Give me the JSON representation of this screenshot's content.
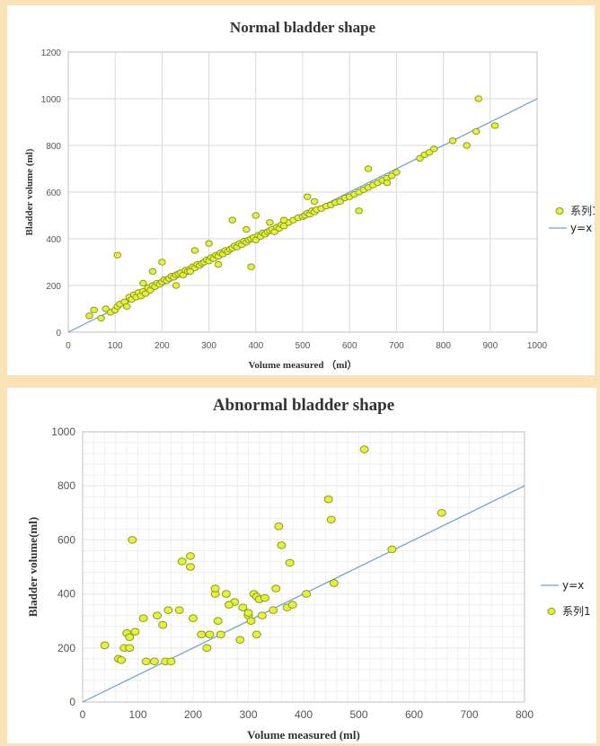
{
  "chart_data": [
    {
      "type": "scatter",
      "title": "Normal bladder shape",
      "xlabel": "Volume measured （ml）",
      "ylabel": "Bladder volume (ml)",
      "xlim": [
        0,
        1000
      ],
      "ylim": [
        0,
        1200
      ],
      "xticks": [
        "0",
        "100",
        "200",
        "300",
        "400",
        "500",
        "600",
        "700",
        "800",
        "900",
        "1000"
      ],
      "yticks": [
        "0",
        "200",
        "400",
        "600",
        "800",
        "1000",
        "1200"
      ],
      "grid": true,
      "legend_position": "right",
      "series": [
        {
          "name": "系列1",
          "kind": "points",
          "color": "#e6f23a",
          "x": [
            45,
            55,
            70,
            80,
            90,
            100,
            105,
            110,
            120,
            125,
            130,
            135,
            140,
            145,
            150,
            155,
            160,
            165,
            170,
            175,
            180,
            185,
            190,
            195,
            200,
            205,
            210,
            215,
            220,
            225,
            230,
            235,
            240,
            245,
            250,
            255,
            260,
            265,
            270,
            275,
            280,
            285,
            290,
            295,
            300,
            305,
            310,
            315,
            320,
            325,
            330,
            335,
            340,
            345,
            350,
            355,
            360,
            365,
            370,
            375,
            380,
            385,
            390,
            395,
            400,
            405,
            410,
            415,
            420,
            425,
            430,
            435,
            440,
            445,
            450,
            455,
            460,
            470,
            480,
            490,
            500,
            505,
            510,
            515,
            520,
            525,
            530,
            540,
            550,
            560,
            570,
            580,
            590,
            600,
            610,
            620,
            630,
            640,
            650,
            660,
            670,
            680,
            690,
            700,
            750,
            760,
            770,
            780,
            820,
            850,
            870,
            910,
            875,
            105,
            160,
            200,
            230,
            260,
            300,
            320,
            350,
            380,
            400,
            430,
            460,
            510,
            525,
            620,
            640,
            680,
            180,
            270,
            390
          ],
          "y": [
            70,
            95,
            60,
            100,
            85,
            95,
            110,
            120,
            130,
            110,
            150,
            140,
            160,
            150,
            170,
            155,
            175,
            165,
            190,
            180,
            200,
            195,
            210,
            205,
            215,
            225,
            220,
            230,
            240,
            235,
            245,
            250,
            255,
            245,
            265,
            260,
            270,
            280,
            275,
            290,
            285,
            295,
            300,
            310,
            305,
            320,
            315,
            330,
            325,
            340,
            335,
            350,
            345,
            355,
            360,
            370,
            365,
            380,
            375,
            390,
            385,
            395,
            400,
            405,
            395,
            415,
            410,
            425,
            420,
            430,
            435,
            440,
            430,
            450,
            445,
            460,
            455,
            470,
            480,
            490,
            495,
            500,
            510,
            505,
            520,
            515,
            525,
            530,
            540,
            545,
            555,
            560,
            575,
            580,
            590,
            600,
            610,
            620,
            630,
            640,
            650,
            660,
            670,
            685,
            745,
            760,
            770,
            785,
            820,
            800,
            860,
            885,
            1000,
            330,
            210,
            300,
            200,
            260,
            380,
            290,
            480,
            440,
            500,
            470,
            480,
            580,
            560,
            520,
            700,
            640,
            260,
            350,
            280
          ]
        },
        {
          "name": "y=x",
          "kind": "line",
          "color": "#6a9fd4",
          "x": [
            0,
            1000
          ],
          "y": [
            0,
            1000
          ]
        }
      ]
    },
    {
      "type": "scatter",
      "title": "Abnormal bladder shape",
      "xlabel": "Volume measured (ml)",
      "ylabel": "Bladder volume(ml)",
      "xlim": [
        0,
        800
      ],
      "ylim": [
        0,
        1000
      ],
      "xticks": [
        "0",
        "100",
        "200",
        "300",
        "400",
        "500",
        "600",
        "700",
        "800"
      ],
      "yticks": [
        "0",
        "200",
        "400",
        "600",
        "800",
        "1000"
      ],
      "grid": true,
      "legend_position": "right",
      "series": [
        {
          "name": "y=x",
          "kind": "line",
          "color": "#6a9fd4",
          "x": [
            0,
            800
          ],
          "y": [
            0,
            800
          ]
        },
        {
          "name": "系列1",
          "kind": "points",
          "color": "#e6f23a",
          "x": [
            40,
            65,
            70,
            75,
            80,
            85,
            90,
            85,
            110,
            115,
            130,
            135,
            145,
            150,
            155,
            160,
            175,
            180,
            195,
            200,
            225,
            230,
            240,
            240,
            245,
            250,
            260,
            275,
            285,
            290,
            300,
            305,
            310,
            315,
            315,
            320,
            325,
            330,
            345,
            350,
            355,
            360,
            370,
            375,
            380,
            405,
            445,
            450,
            455,
            510,
            560,
            650,
            95,
            195,
            215,
            265,
            300
          ],
          "y": [
            210,
            160,
            155,
            200,
            255,
            200,
            600,
            240,
            310,
            150,
            150,
            320,
            285,
            150,
            340,
            150,
            340,
            520,
            500,
            310,
            200,
            250,
            400,
            420,
            300,
            250,
            400,
            370,
            230,
            350,
            320,
            300,
            400,
            390,
            250,
            380,
            320,
            385,
            340,
            420,
            650,
            580,
            350,
            515,
            360,
            400,
            750,
            675,
            440,
            935,
            565,
            700,
            260,
            540,
            250,
            360,
            330
          ]
        }
      ]
    }
  ]
}
